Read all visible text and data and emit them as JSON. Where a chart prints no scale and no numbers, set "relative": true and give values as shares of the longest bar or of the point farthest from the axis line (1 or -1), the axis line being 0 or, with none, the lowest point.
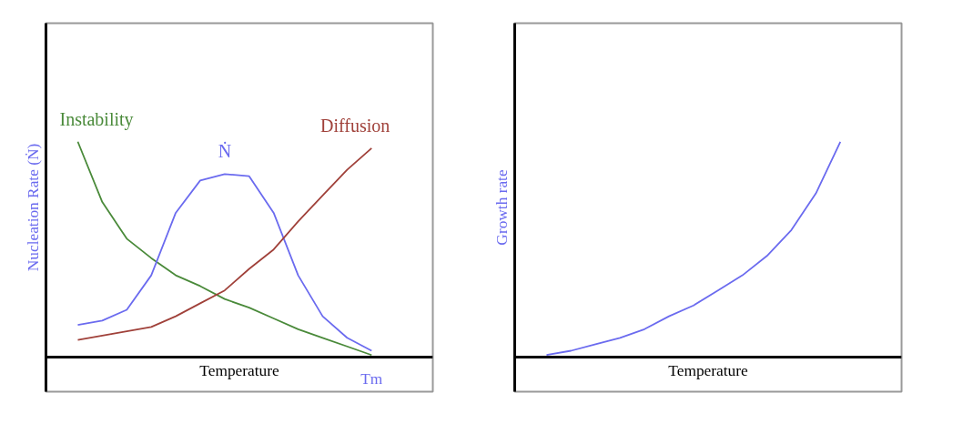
{
  "chart_data": [
    {
      "type": "line",
      "relative": true,
      "xlabel": "Temperature",
      "ylabel": "Nucleation Rate (Ṅ)",
      "annotations": [
        "Tm"
      ],
      "categories": [
        null,
        null,
        null,
        null,
        null,
        null,
        null,
        null,
        null,
        null,
        null,
        null,
        null
      ],
      "series": [
        {
          "name": "Instability",
          "color": "#4a8a3a",
          "values": [
            1,
            0.72,
            0.55,
            0.46,
            0.38,
            0.33,
            0.27,
            0.23,
            0.18,
            0.13,
            0.09,
            0.05,
            0.01
          ]
        },
        {
          "name": "Ṅ",
          "color": "#6b6bef",
          "values": [
            0.15,
            0.17,
            0.22,
            0.38,
            0.67,
            0.82,
            0.85,
            0.84,
            0.67,
            0.38,
            0.19,
            0.09,
            0.03
          ]
        },
        {
          "name": "Diffusion",
          "color": "#a0413a",
          "values": [
            0.08,
            0.1,
            0.12,
            0.14,
            0.19,
            0.25,
            0.31,
            0.41,
            0.5,
            0.63,
            0.75,
            0.87,
            0.97
          ]
        }
      ]
    },
    {
      "type": "line",
      "relative": true,
      "xlabel": "Temperature",
      "ylabel": "Growth rate",
      "categories": [
        null,
        null,
        null,
        null,
        null,
        null,
        null,
        null,
        null,
        null,
        null,
        null,
        null
      ],
      "series": [
        {
          "color": "#6b6bef",
          "values": [
            0.01,
            0.03,
            0.06,
            0.09,
            0.13,
            0.19,
            0.24,
            0.31,
            0.38,
            0.47,
            0.59,
            0.76,
            1
          ]
        }
      ]
    }
  ]
}
